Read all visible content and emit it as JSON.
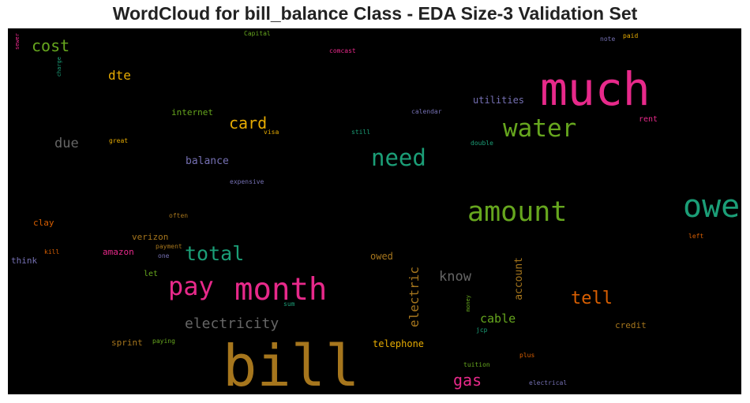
{
  "title": "WordCloud for bill_balance Class - EDA Size-3 Validation Set",
  "words": [
    {
      "text": "bill",
      "color": "#a6761d"
    },
    {
      "text": "much",
      "color": "#e7298a"
    },
    {
      "text": "owe",
      "color": "#1b9e77"
    },
    {
      "text": "month",
      "color": "#e7298a"
    },
    {
      "text": "amount",
      "color": "#66a61e"
    },
    {
      "text": "pay",
      "color": "#e7298a"
    },
    {
      "text": "water",
      "color": "#66a61e"
    },
    {
      "text": "need",
      "color": "#1b9e77"
    },
    {
      "text": "total",
      "color": "#1b9e77"
    },
    {
      "text": "tell",
      "color": "#d95f02"
    },
    {
      "text": "electricity",
      "color": "#666666"
    },
    {
      "text": "card",
      "color": "#e6ab02"
    },
    {
      "text": "cost",
      "color": "#66a61e"
    },
    {
      "text": "gas",
      "color": "#e7298a"
    },
    {
      "text": "know",
      "color": "#666666"
    },
    {
      "text": "due",
      "color": "#666666"
    },
    {
      "text": "electric",
      "color": "#a6761d"
    },
    {
      "text": "dte",
      "color": "#e6ab02"
    },
    {
      "text": "cable",
      "color": "#66a61e"
    },
    {
      "text": "account",
      "color": "#a6761d"
    },
    {
      "text": "balance",
      "color": "#7570b3"
    },
    {
      "text": "utilities",
      "color": "#7570b3"
    },
    {
      "text": "owed",
      "color": "#a6761d"
    },
    {
      "text": "telephone",
      "color": "#e6ab02"
    },
    {
      "text": "internet",
      "color": "#66a61e"
    },
    {
      "text": "verizon",
      "color": "#a6761d"
    },
    {
      "text": "amazon",
      "color": "#e7298a"
    },
    {
      "text": "sprint",
      "color": "#a6761d"
    },
    {
      "text": "credit",
      "color": "#a6761d"
    },
    {
      "text": "clay",
      "color": "#d95f02"
    },
    {
      "text": "think",
      "color": "#7570b3"
    },
    {
      "text": "rent",
      "color": "#e7298a"
    },
    {
      "text": "let",
      "color": "#66a61e"
    },
    {
      "text": "comcast",
      "color": "#e7298a"
    },
    {
      "text": "Capital",
      "color": "#66a61e"
    },
    {
      "text": "calendar",
      "color": "#7570b3"
    },
    {
      "text": "still",
      "color": "#1b9e77"
    },
    {
      "text": "visa",
      "color": "#e6ab02"
    },
    {
      "text": "great",
      "color": "#e6ab02"
    },
    {
      "text": "double",
      "color": "#1b9e77"
    },
    {
      "text": "expensive",
      "color": "#7570b3"
    },
    {
      "text": "often",
      "color": "#a6761d"
    },
    {
      "text": "payment",
      "color": "#a6761d"
    },
    {
      "text": "one",
      "color": "#7570b3"
    },
    {
      "text": "kill",
      "color": "#d95f02"
    },
    {
      "text": "left",
      "color": "#d95f02"
    },
    {
      "text": "sum",
      "color": "#1b9e77"
    },
    {
      "text": "paying",
      "color": "#66a61e"
    },
    {
      "text": "jcp",
      "color": "#1b9e77"
    },
    {
      "text": "money",
      "color": "#66a61e"
    },
    {
      "text": "tuition",
      "color": "#66a61e"
    },
    {
      "text": "plus",
      "color": "#d95f02"
    },
    {
      "text": "electrical",
      "color": "#7570b3"
    },
    {
      "text": "note",
      "color": "#7570b3"
    },
    {
      "text": "paid",
      "color": "#e6ab02"
    },
    {
      "text": "sewer",
      "color": "#e7298a"
    },
    {
      "text": "charge",
      "color": "#1b9e77"
    }
  ]
}
